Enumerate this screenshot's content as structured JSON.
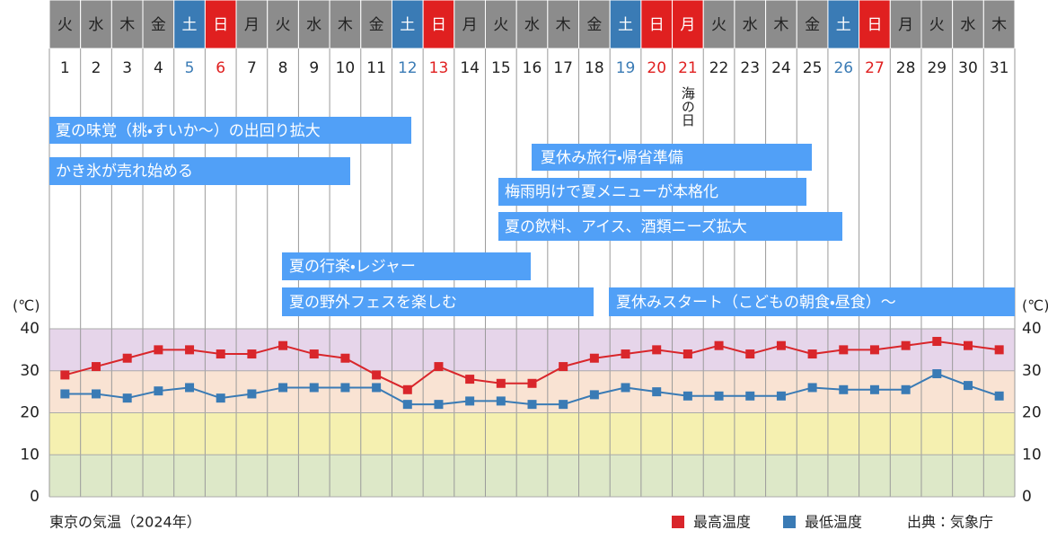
{
  "calendar": {
    "weekdays": [
      "火",
      "水",
      "木",
      "金",
      "土",
      "日",
      "月",
      "火",
      "水",
      "木",
      "金",
      "土",
      "日",
      "月",
      "火",
      "水",
      "木",
      "金",
      "土",
      "日",
      "月",
      "火",
      "水",
      "木",
      "金",
      "土",
      "日",
      "月",
      "火",
      "水",
      "木"
    ],
    "notes": [
      null,
      null,
      null,
      null,
      null,
      null,
      null,
      null,
      null,
      null,
      null,
      null,
      null,
      null,
      null,
      null,
      null,
      null,
      null,
      null,
      "海の日",
      null,
      null,
      null,
      null,
      null,
      null,
      null,
      null,
      null,
      null
    ],
    "saturday_color": "#3a7bb5",
    "holiday_color": "#e02020",
    "weekday_color": "#8c8c8c"
  },
  "events": [
    "夏の味覚（桃・すいか〜）の出回り拡大",
    "かき氷が売れ始める",
    "夏休み旅行・帰省準備",
    "梅雨明けで夏メニューが本格化",
    "夏の飲料、アイス、酒類ニーズ拡大",
    "夏の行楽・レジャー",
    "夏の野外フェスを楽しむ",
    "夏休みスタート（こどもの朝食・昼食）〜"
  ],
  "chart_data": {
    "type": "line",
    "caption": "東京の気温（2024年）",
    "source": "出典：気象庁",
    "y_unit": "(℃)",
    "categories": [
      1,
      2,
      3,
      4,
      5,
      6,
      7,
      8,
      9,
      10,
      11,
      12,
      13,
      14,
      15,
      16,
      17,
      18,
      19,
      20,
      21,
      22,
      23,
      24,
      25,
      26,
      27,
      28,
      29,
      30,
      31
    ],
    "series": [
      {
        "name": "最高温度",
        "color": "#d9262b",
        "values": [
          29,
          31,
          33,
          35,
          35,
          34,
          34,
          36,
          34,
          33,
          29,
          25.5,
          31,
          28,
          27,
          27,
          31,
          33,
          34,
          35,
          34,
          36,
          34,
          36,
          34,
          35,
          35,
          36,
          37,
          36,
          35
        ]
      },
      {
        "name": "最低温度",
        "color": "#3a7bb5",
        "values": [
          24.5,
          24.5,
          23.5,
          25.2,
          26,
          23.5,
          24.5,
          26,
          26,
          26,
          26,
          22,
          22,
          22.8,
          22.8,
          22,
          22,
          24.3,
          26,
          25,
          24,
          24,
          24,
          24,
          26,
          25.5,
          25.5,
          25.5,
          29.3,
          26.5,
          24
        ]
      }
    ],
    "ylim": [
      0,
      40
    ],
    "yticks": [
      0,
      10,
      20,
      30,
      40
    ],
    "band_colors": [
      "#dde8c8",
      "#f5f0b0",
      "#f9e3d3",
      "#e6d5ea"
    ],
    "grid": true
  }
}
